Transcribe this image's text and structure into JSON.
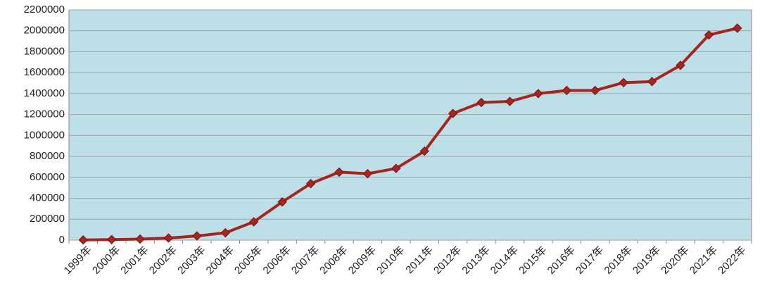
{
  "chart_data": {
    "type": "line",
    "categories": [
      "1999年",
      "2000年",
      "2001年",
      "2002年",
      "2003年",
      "2004年",
      "2005年",
      "2006年",
      "2007年",
      "2008年",
      "2009年",
      "2010年",
      "2011年",
      "2012年",
      "2013年",
      "2014年",
      "2015年",
      "2016年",
      "2017年",
      "2018年",
      "2019年",
      "2020年",
      "2021年",
      "2022年"
    ],
    "series": [
      {
        "color": "#a8241f",
        "values": [
          2000,
          5000,
          10000,
          20000,
          40000,
          70000,
          175000,
          365000,
          540000,
          650000,
          635000,
          685000,
          850000,
          1210000,
          1315000,
          1325000,
          1400000,
          1430000,
          1430000,
          1505000,
          1515000,
          1670000,
          1960000,
          2025000
        ]
      }
    ],
    "ylim": [
      0,
      2200000
    ],
    "yticks": [
      0,
      200000,
      400000,
      600000,
      800000,
      1000000,
      1200000,
      1400000,
      1600000,
      1800000,
      2000000,
      2200000
    ],
    "grid": true
  }
}
